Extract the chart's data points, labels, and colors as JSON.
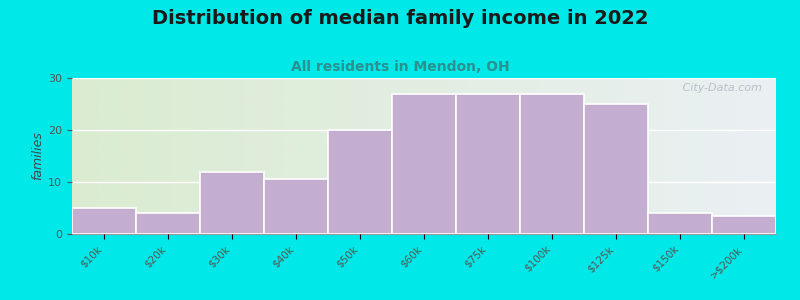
{
  "title": "Distribution of median family income in 2022",
  "subtitle": "All residents in Mendon, OH",
  "categories": [
    "$10k",
    "$20k",
    "$30k",
    "$40k",
    "$50k",
    "$60k",
    "$75k",
    "$100k",
    "$125k",
    "$150k",
    ">$200k"
  ],
  "values": [
    5,
    4,
    12,
    10.5,
    20,
    27,
    27,
    27,
    25,
    4,
    3.5
  ],
  "bar_color": "#c4aed0",
  "bar_edge_color": "#ffffff",
  "ylabel": "families",
  "ylim": [
    0,
    30
  ],
  "yticks": [
    0,
    10,
    20,
    30
  ],
  "background_outer": "#00e8e8",
  "title_fontsize": 14,
  "subtitle_fontsize": 10,
  "title_color": "#1a1a1a",
  "subtitle_color": "#2a9090",
  "watermark_text": " City-Data.com",
  "watermark_color": "#b0b8c0"
}
